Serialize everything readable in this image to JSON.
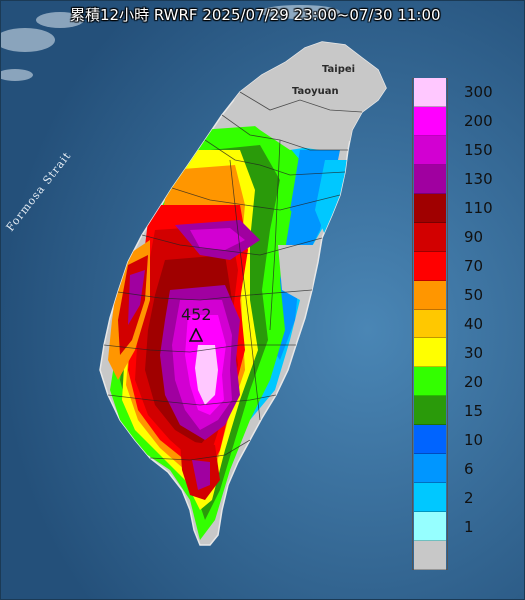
{
  "title": "累積12小時 RWRF 2025/07/29 23:00~07/30 11:00",
  "places": {
    "taipei": "Taipei",
    "taoyuan": "Taoyuan",
    "strait": "Formosa Strait"
  },
  "max_value": "452",
  "legend": {
    "items": [
      {
        "label": "300",
        "color": "#ffc8ff"
      },
      {
        "label": "200",
        "color": "#ff00ff"
      },
      {
        "label": "150",
        "color": "#d200d2"
      },
      {
        "label": "130",
        "color": "#a000a0"
      },
      {
        "label": "110",
        "color": "#a00000"
      },
      {
        "label": "90",
        "color": "#d20000"
      },
      {
        "label": "70",
        "color": "#ff0000"
      },
      {
        "label": "50",
        "color": "#ff9600"
      },
      {
        "label": "40",
        "color": "#ffc800"
      },
      {
        "label": "30",
        "color": "#ffff00"
      },
      {
        "label": "20",
        "color": "#33ff00"
      },
      {
        "label": "15",
        "color": "#2a9a0a"
      },
      {
        "label": "10",
        "color": "#0064ff"
      },
      {
        "label": "6",
        "color": "#0096ff"
      },
      {
        "label": "2",
        "color": "#00c8ff"
      },
      {
        "label": "1",
        "color": "#96ffff"
      },
      {
        "label": "",
        "color": "#c8c8c8"
      }
    ]
  },
  "colors": {
    "sea": "#2f5f86",
    "land_no_rain": "#c8c8c8"
  }
}
